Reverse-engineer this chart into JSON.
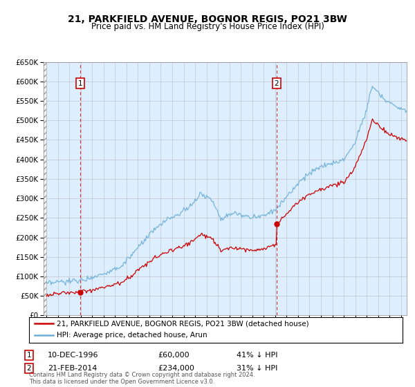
{
  "title": "21, PARKFIELD AVENUE, BOGNOR REGIS, PO21 3BW",
  "subtitle": "Price paid vs. HM Land Registry's House Price Index (HPI)",
  "ylim": [
    0,
    650000
  ],
  "yticks": [
    0,
    50000,
    100000,
    150000,
    200000,
    250000,
    300000,
    350000,
    400000,
    450000,
    500000,
    550000,
    600000,
    650000
  ],
  "xlim_start": 1993.75,
  "xlim_end": 2025.5,
  "bg_color": "#ddeeff",
  "hatch_end_year": 1994.0,
  "point1_year": 1996.94,
  "point1_price": 60000,
  "point1_date": "10-DEC-1996",
  "point1_pct": "41%",
  "point2_year": 2014.12,
  "point2_price": 234000,
  "point2_date": "21-FEB-2014",
  "point2_pct": "31%",
  "legend_line1": "21, PARKFIELD AVENUE, BOGNOR REGIS, PO21 3BW (detached house)",
  "legend_line2": "HPI: Average price, detached house, Arun",
  "footer": "Contains HM Land Registry data © Crown copyright and database right 2024.\nThis data is licensed under the Open Government Licence v3.0.",
  "red_line_color": "#cc0000",
  "blue_line_color": "#6baed6",
  "grid_color": "#bbbbbb",
  "title_fontsize": 10,
  "subtitle_fontsize": 8.5,
  "tick_fontsize": 7.5
}
